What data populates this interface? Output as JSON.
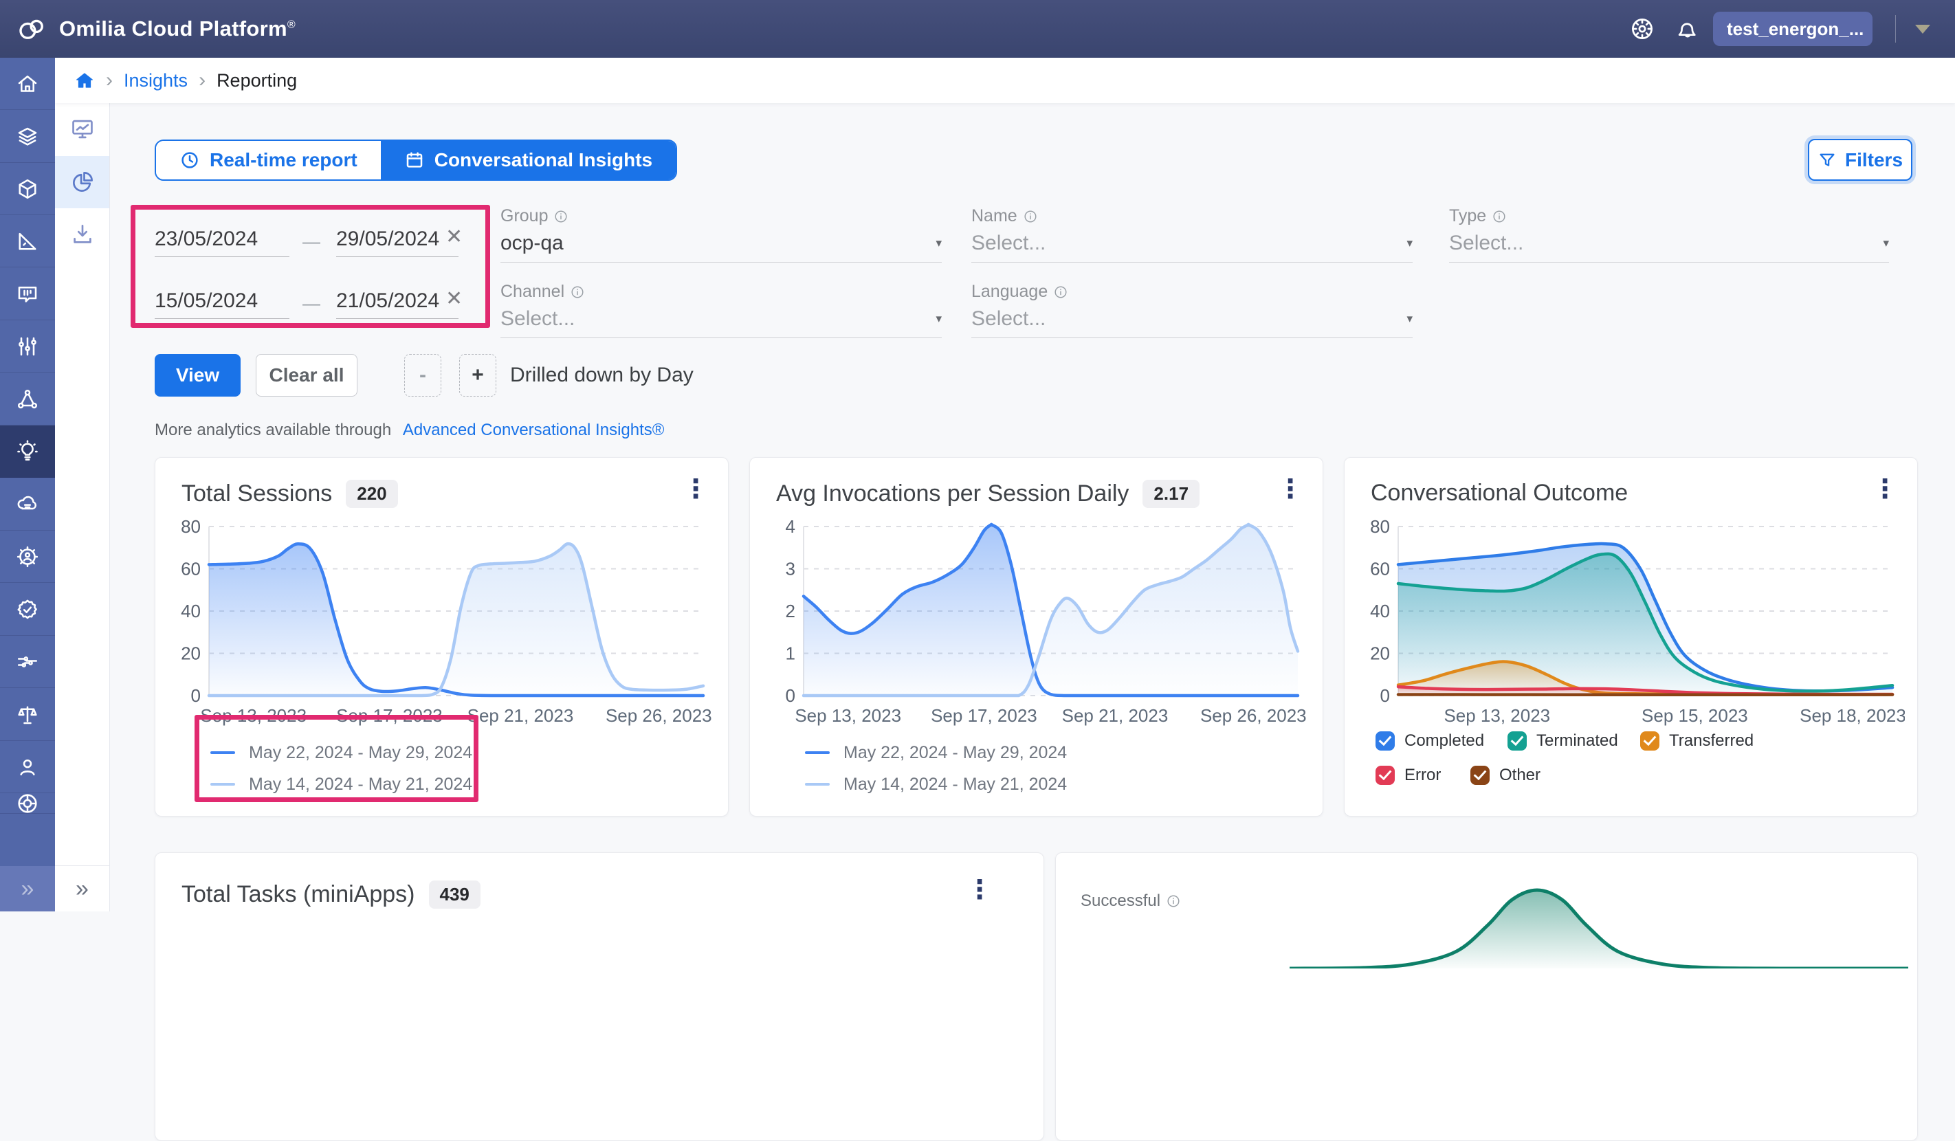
{
  "header": {
    "title": "Omilia Cloud Platform",
    "trademark": "®",
    "account_label": "test_energon_..."
  },
  "breadcrumb": {
    "separator": "›",
    "insights": "Insights",
    "reporting": "Reporting"
  },
  "tabs": {
    "realtime": "Real-time report",
    "conversational": "Conversational Insights"
  },
  "toolbar": {
    "view": "View",
    "clear_all": "Clear all",
    "minus": "-",
    "plus": "+",
    "drill_label": "Drilled down by Day",
    "filters": "Filters"
  },
  "more_analytics": {
    "text": "More analytics available through",
    "link": "Advanced Conversational Insights®"
  },
  "filters": {
    "ranges": [
      {
        "from": "23/05/2024",
        "dash": "—",
        "to": "29/05/2024",
        "close": "✕"
      },
      {
        "from": "15/05/2024",
        "dash": "—",
        "to": "21/05/2024",
        "close": "✕"
      }
    ],
    "group": {
      "label": "Group",
      "value": "ocp-qa",
      "caret": "▾"
    },
    "name": {
      "label": "Name",
      "placeholder": "Select...",
      "caret": "▾"
    },
    "type": {
      "label": "Type",
      "placeholder": "Select...",
      "caret": "▾"
    },
    "channel": {
      "label": "Channel",
      "placeholder": "Select...",
      "caret": "▾"
    },
    "language": {
      "label": "Language",
      "placeholder": "Select...",
      "caret": "▾"
    }
  },
  "cards": {
    "sessions": {
      "title": "Total Sessions",
      "badge": "220",
      "kebab": "⋮"
    },
    "invocations": {
      "title": "Avg Invocations per Session Daily",
      "badge": "2.17",
      "kebab": "⋮"
    },
    "outcome": {
      "title": "Conversational Outcome",
      "kebab": "⋮"
    },
    "tasks": {
      "title": "Total Tasks (miniApps)",
      "badge": "439",
      "kebab": "⋮"
    },
    "successful": {
      "label": "Successful"
    }
  },
  "rails": {
    "collapse_glyph": "»"
  },
  "chart_data": [
    {
      "id": "total-sessions",
      "type": "area",
      "title": "Total Sessions",
      "total": 220,
      "ylim": [
        0,
        80
      ],
      "yticks": [
        0,
        20,
        40,
        60,
        80
      ],
      "grid": "dashed-horizontal",
      "legend_position": "bottom-left",
      "xticks": [
        {
          "x": 0.09,
          "label": "Sep 13, 2023"
        },
        {
          "x": 0.365,
          "label": "Sep 17, 2023"
        },
        {
          "x": 0.63,
          "label": "Sep 21, 2023"
        },
        {
          "x": 0.91,
          "label": "Sep 26, 2023"
        }
      ],
      "series": [
        {
          "name": "May 22, 2024 - May 29, 2024",
          "color": "#3d82f2",
          "fill_opacity": 0.45,
          "points": [
            [
              0,
              62
            ],
            [
              0.04,
              62.2
            ],
            [
              0.08,
              62.6
            ],
            [
              0.11,
              63.5
            ],
            [
              0.14,
              66
            ],
            [
              0.16,
              69.5
            ],
            [
              0.18,
              71.8
            ],
            [
              0.205,
              69.5
            ],
            [
              0.23,
              58
            ],
            [
              0.255,
              36
            ],
            [
              0.28,
              17
            ],
            [
              0.305,
              7
            ],
            [
              0.325,
              3.2
            ],
            [
              0.35,
              2.0
            ],
            [
              0.38,
              2.2
            ],
            [
              0.41,
              3.2
            ],
            [
              0.44,
              3.8
            ],
            [
              0.47,
              2.6
            ],
            [
              0.5,
              1.0
            ],
            [
              0.53,
              0.2
            ],
            [
              0.58,
              0
            ],
            [
              0.66,
              0
            ],
            [
              0.75,
              0
            ],
            [
              0.85,
              0
            ],
            [
              0.93,
              0
            ],
            [
              1,
              0
            ]
          ]
        },
        {
          "name": "May 14, 2024 - May 21, 2024",
          "color": "#a9c9f6",
          "fill_opacity": 0.4,
          "points": [
            [
              0,
              0
            ],
            [
              0.1,
              0
            ],
            [
              0.2,
              0
            ],
            [
              0.3,
              0
            ],
            [
              0.38,
              0
            ],
            [
              0.43,
              0
            ],
            [
              0.452,
              0.5
            ],
            [
              0.47,
              4
            ],
            [
              0.49,
              18
            ],
            [
              0.51,
              42
            ],
            [
              0.53,
              58
            ],
            [
              0.545,
              61.5
            ],
            [
              0.57,
              62.3
            ],
            [
              0.6,
              62.6
            ],
            [
              0.63,
              63
            ],
            [
              0.66,
              63.6
            ],
            [
              0.69,
              66
            ],
            [
              0.71,
              69
            ],
            [
              0.725,
              71.8
            ],
            [
              0.74,
              70
            ],
            [
              0.755,
              62
            ],
            [
              0.775,
              42
            ],
            [
              0.795,
              22
            ],
            [
              0.815,
              10
            ],
            [
              0.835,
              4.5
            ],
            [
              0.855,
              3
            ],
            [
              0.89,
              2.6
            ],
            [
              0.93,
              2.6
            ],
            [
              0.965,
              3
            ],
            [
              1,
              4.6
            ]
          ]
        }
      ]
    },
    {
      "id": "avg-invocations",
      "type": "area",
      "title": "Avg Invocations per Session Daily",
      "total": 2.17,
      "ylim": [
        0,
        4
      ],
      "yticks": [
        0,
        1,
        2,
        3,
        4
      ],
      "grid": "dashed-horizontal",
      "legend_position": "bottom-left",
      "xticks": [
        {
          "x": 0.09,
          "label": "Sep 13, 2023"
        },
        {
          "x": 0.365,
          "label": "Sep 17, 2023"
        },
        {
          "x": 0.63,
          "label": "Sep 21, 2023"
        },
        {
          "x": 0.91,
          "label": "Sep 26, 2023"
        }
      ],
      "series": [
        {
          "name": "May 22, 2024 - May 29, 2024",
          "color": "#3d82f2",
          "fill_opacity": 0.45,
          "points": [
            [
              0,
              2.35
            ],
            [
              0.025,
              2.1
            ],
            [
              0.05,
              1.8
            ],
            [
              0.075,
              1.55
            ],
            [
              0.095,
              1.47
            ],
            [
              0.115,
              1.52
            ],
            [
              0.14,
              1.72
            ],
            [
              0.17,
              2.05
            ],
            [
              0.2,
              2.4
            ],
            [
              0.23,
              2.58
            ],
            [
              0.26,
              2.68
            ],
            [
              0.29,
              2.85
            ],
            [
              0.32,
              3.1
            ],
            [
              0.345,
              3.5
            ],
            [
              0.365,
              3.9
            ],
            [
              0.38,
              4.05
            ],
            [
              0.4,
              3.85
            ],
            [
              0.42,
              3.1
            ],
            [
              0.44,
              2.0
            ],
            [
              0.46,
              0.9
            ],
            [
              0.478,
              0.25
            ],
            [
              0.5,
              0.03
            ],
            [
              0.53,
              0
            ],
            [
              0.6,
              0
            ],
            [
              0.7,
              0
            ],
            [
              0.85,
              0
            ],
            [
              1,
              0
            ]
          ]
        },
        {
          "name": "May 14, 2024 - May 21, 2024",
          "color": "#a9c9f6",
          "fill_opacity": 0.4,
          "points": [
            [
              0,
              0
            ],
            [
              0.1,
              0
            ],
            [
              0.2,
              0
            ],
            [
              0.3,
              0
            ],
            [
              0.4,
              0
            ],
            [
              0.435,
              0
            ],
            [
              0.455,
              0.25
            ],
            [
              0.475,
              0.9
            ],
            [
              0.5,
              1.8
            ],
            [
              0.52,
              2.2
            ],
            [
              0.535,
              2.3
            ],
            [
              0.555,
              2.1
            ],
            [
              0.575,
              1.7
            ],
            [
              0.595,
              1.5
            ],
            [
              0.615,
              1.55
            ],
            [
              0.64,
              1.85
            ],
            [
              0.665,
              2.2
            ],
            [
              0.69,
              2.5
            ],
            [
              0.715,
              2.62
            ],
            [
              0.74,
              2.7
            ],
            [
              0.765,
              2.8
            ],
            [
              0.79,
              3.0
            ],
            [
              0.815,
              3.2
            ],
            [
              0.84,
              3.45
            ],
            [
              0.865,
              3.7
            ],
            [
              0.885,
              3.95
            ],
            [
              0.9,
              4.05
            ],
            [
              0.92,
              3.9
            ],
            [
              0.945,
              3.4
            ],
            [
              0.97,
              2.5
            ],
            [
              0.985,
              1.6
            ],
            [
              1,
              1.05
            ]
          ]
        }
      ]
    },
    {
      "id": "conversational-outcome",
      "type": "area",
      "title": "Conversational Outcome",
      "ylim": [
        0,
        80
      ],
      "yticks": [
        0,
        20,
        40,
        60,
        80
      ],
      "grid": "dashed-horizontal",
      "legend_position": "bottom-left-checkboxes",
      "xticks": [
        {
          "x": 0.2,
          "label": "Sep 13, 2023"
        },
        {
          "x": 0.6,
          "label": "Sep 15, 2023"
        },
        {
          "x": 0.92,
          "label": "Sep 18, 2023"
        }
      ],
      "series": [
        {
          "name": "Completed",
          "color": "#2f7ce8",
          "checked": true,
          "fill_opacity": 0.32,
          "points": [
            [
              0,
              62
            ],
            [
              0.07,
              63.5
            ],
            [
              0.14,
              65
            ],
            [
              0.21,
              66.5
            ],
            [
              0.28,
              68.5
            ],
            [
              0.33,
              70.3
            ],
            [
              0.38,
              71.5
            ],
            [
              0.42,
              71.8
            ],
            [
              0.455,
              70
            ],
            [
              0.49,
              60
            ],
            [
              0.52,
              45
            ],
            [
              0.55,
              30
            ],
            [
              0.58,
              19
            ],
            [
              0.62,
              12
            ],
            [
              0.66,
              8
            ],
            [
              0.7,
              5.5
            ],
            [
              0.75,
              3.5
            ],
            [
              0.8,
              2.5
            ],
            [
              0.86,
              2.2
            ],
            [
              0.92,
              2.6
            ],
            [
              1,
              3.8
            ]
          ]
        },
        {
          "name": "Terminated",
          "color": "#14a192",
          "checked": true,
          "fill_opacity": 0.4,
          "points": [
            [
              0,
              53
            ],
            [
              0.06,
              51.5
            ],
            [
              0.12,
              50.3
            ],
            [
              0.18,
              49.6
            ],
            [
              0.22,
              49.5
            ],
            [
              0.26,
              51
            ],
            [
              0.3,
              55
            ],
            [
              0.34,
              60
            ],
            [
              0.38,
              64.5
            ],
            [
              0.41,
              66.8
            ],
            [
              0.44,
              66
            ],
            [
              0.47,
              58
            ],
            [
              0.5,
              44
            ],
            [
              0.53,
              29
            ],
            [
              0.56,
              18
            ],
            [
              0.6,
              11
            ],
            [
              0.64,
              7
            ],
            [
              0.69,
              4.5
            ],
            [
              0.74,
              3
            ],
            [
              0.8,
              2.2
            ],
            [
              0.86,
              2.2
            ],
            [
              0.92,
              3
            ],
            [
              1,
              4.8
            ]
          ]
        },
        {
          "name": "Transferred",
          "color": "#e0891b",
          "checked": true,
          "fill_opacity": 0.4,
          "points": [
            [
              0,
              5
            ],
            [
              0.05,
              7
            ],
            [
              0.1,
              10.5
            ],
            [
              0.15,
              13.5
            ],
            [
              0.19,
              15.5
            ],
            [
              0.22,
              16
            ],
            [
              0.26,
              14
            ],
            [
              0.3,
              10
            ],
            [
              0.34,
              5.5
            ],
            [
              0.38,
              2.5
            ],
            [
              0.42,
              1.2
            ],
            [
              0.48,
              0.9
            ],
            [
              0.55,
              0.8
            ],
            [
              0.65,
              0.7
            ],
            [
              0.75,
              0.6
            ],
            [
              0.85,
              0.6
            ],
            [
              1,
              0.6
            ]
          ]
        },
        {
          "name": "Error",
          "color": "#e23b55",
          "checked": true,
          "fill_opacity": 0.3,
          "points": [
            [
              0,
              4.2
            ],
            [
              0.06,
              3.4
            ],
            [
              0.12,
              3.0
            ],
            [
              0.18,
              2.9
            ],
            [
              0.24,
              3.0
            ],
            [
              0.3,
              3.1
            ],
            [
              0.36,
              3.3
            ],
            [
              0.42,
              3.2
            ],
            [
              0.48,
              2.7
            ],
            [
              0.54,
              2.0
            ],
            [
              0.6,
              1.4
            ],
            [
              0.66,
              1.0
            ],
            [
              0.72,
              0.85
            ],
            [
              0.8,
              0.7
            ],
            [
              0.9,
              0.6
            ],
            [
              1,
              0.6
            ]
          ]
        },
        {
          "name": "Other",
          "color": "#8a4416",
          "checked": true,
          "fill_opacity": 0.35,
          "points": [
            [
              0,
              0.5
            ],
            [
              0.2,
              0.45
            ],
            [
              0.4,
              0.4
            ],
            [
              0.6,
              0.4
            ],
            [
              0.8,
              0.4
            ],
            [
              1,
              0.45
            ]
          ]
        }
      ]
    },
    {
      "id": "successful-tasks",
      "type": "area",
      "title": "Successful",
      "ylim": [
        0,
        1
      ],
      "yticks": [],
      "xticks": [],
      "axes": false,
      "note": "only curve apex visible at viewport bottom edge",
      "series": [
        {
          "name": "Successful",
          "color": "#0d7f68",
          "fill_opacity": 0.5,
          "points": [
            [
              0,
              0
            ],
            [
              0.12,
              0.01
            ],
            [
              0.2,
              0.06
            ],
            [
              0.27,
              0.22
            ],
            [
              0.32,
              0.55
            ],
            [
              0.36,
              0.88
            ],
            [
              0.4,
              1
            ],
            [
              0.44,
              0.88
            ],
            [
              0.48,
              0.55
            ],
            [
              0.53,
              0.22
            ],
            [
              0.6,
              0.06
            ],
            [
              0.68,
              0.01
            ],
            [
              0.8,
              0
            ],
            [
              1,
              0
            ]
          ]
        }
      ]
    }
  ]
}
